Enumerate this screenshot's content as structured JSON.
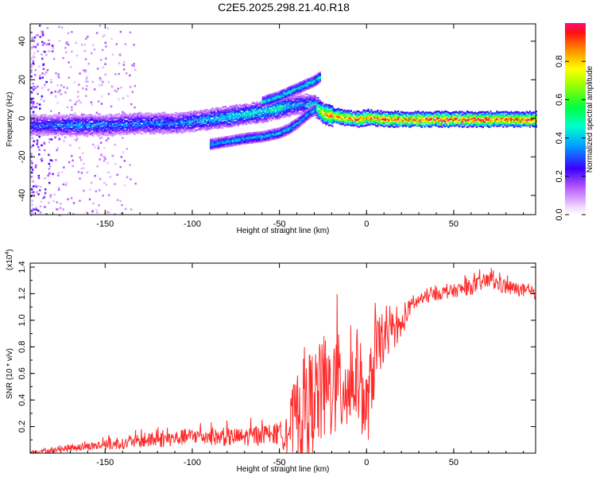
{
  "title": "C2E5.2025.298.21.40.R18",
  "chart_data": [
    {
      "type": "heatmap",
      "name": "spectrogram",
      "xlabel": "Height of straight line (km)",
      "ylabel": "Frequency (Hz)",
      "xlim": [
        -193,
        97
      ],
      "ylim": [
        -50,
        49
      ],
      "x_ticks": [
        -150,
        -100,
        -50,
        0,
        50
      ],
      "x_tick_labels": [
        "-150",
        "-100",
        "-50",
        "0",
        "50"
      ],
      "y_ticks": [
        -40,
        -20,
        0,
        20,
        40
      ],
      "y_tick_labels": [
        "-40",
        "-20",
        "0",
        "20",
        "40"
      ],
      "colorbar": {
        "label": "Normalized spectral amplitude",
        "range": [
          0,
          1
        ],
        "ticks": [
          0.0,
          0.2,
          0.4,
          0.6,
          0.8
        ],
        "tick_labels": [
          "0.0",
          "0.2",
          "0.4",
          "0.6",
          "0.8"
        ]
      },
      "main_band": {
        "x": [
          -193,
          -170,
          -150,
          -130,
          -110,
          -90,
          -75,
          -60,
          -50,
          -45,
          -38,
          -30,
          -25,
          -15,
          -5,
          0,
          10,
          30,
          60,
          97
        ],
        "freq_hz": [
          -3,
          -3,
          -3,
          -2,
          -2,
          0,
          2,
          4,
          6,
          7,
          8,
          7,
          3,
          1,
          0,
          1,
          0,
          0,
          0,
          0
        ],
        "amplitude": [
          0.3,
          0.35,
          0.35,
          0.35,
          0.35,
          0.4,
          0.45,
          0.45,
          0.5,
          0.4,
          0.35,
          0.5,
          0.8,
          0.9,
          0.9,
          0.9,
          0.95,
          0.95,
          0.95,
          0.95
        ]
      },
      "upper_branch": {
        "x": [
          -60,
          -50,
          -45,
          -40,
          -35,
          -30,
          -27
        ],
        "freq_hz": [
          9,
          12,
          14,
          16,
          18,
          20,
          22
        ]
      },
      "lower_branch": {
        "x": [
          -90,
          -70,
          -60,
          -50,
          -45,
          -40,
          -35,
          -30
        ],
        "freq_hz": [
          -13,
          -10,
          -9,
          -7,
          -5,
          -2,
          2,
          5
        ]
      }
    },
    {
      "type": "line",
      "name": "snr",
      "xlabel": "Height of straight line (km)",
      "ylabel": "SNR (10 * v/v)",
      "y_multiplier_label": "(x10",
      "y_multiplier_exponent": "4",
      "y_multiplier_close": ")",
      "xlim": [
        -193,
        97
      ],
      "ylim": [
        0,
        1.43
      ],
      "x_ticks": [
        -150,
        -100,
        -50,
        0,
        50
      ],
      "x_tick_labels": [
        "-150",
        "-100",
        "-50",
        "0",
        "50"
      ],
      "y_ticks": [
        0.2,
        0.4,
        0.6,
        0.8,
        1.0,
        1.2,
        1.4
      ],
      "y_tick_labels": [
        "0.2",
        "0.4",
        "0.6",
        "0.8",
        "1.0",
        "1.2",
        "1.4"
      ],
      "color": "#ff2a2a",
      "series": [
        {
          "name": "SNR",
          "x": [
            -193,
            -180,
            -170,
            -160,
            -150,
            -140,
            -130,
            -120,
            -110,
            -100,
            -90,
            -80,
            -70,
            -60,
            -50,
            -45,
            -40,
            -35,
            -30,
            -25,
            -20,
            -15,
            -10,
            -5,
            0,
            5,
            10,
            15,
            20,
            25,
            30,
            40,
            50,
            60,
            70,
            80,
            90,
            97
          ],
          "values": [
            0.01,
            0.02,
            0.04,
            0.05,
            0.06,
            0.07,
            0.09,
            0.1,
            0.11,
            0.13,
            0.12,
            0.12,
            0.12,
            0.14,
            0.14,
            0.18,
            0.25,
            0.35,
            0.4,
            0.45,
            0.5,
            0.5,
            0.5,
            0.6,
            0.3,
            0.75,
            0.85,
            0.9,
            0.95,
            1.1,
            1.15,
            1.2,
            1.22,
            1.25,
            1.3,
            1.25,
            1.22,
            1.18
          ],
          "noise_amplitude": [
            0.01,
            0.02,
            0.03,
            0.03,
            0.04,
            0.04,
            0.05,
            0.06,
            0.06,
            0.06,
            0.06,
            0.07,
            0.07,
            0.08,
            0.08,
            0.2,
            0.35,
            0.4,
            0.4,
            0.4,
            0.4,
            0.4,
            0.35,
            0.35,
            0.3,
            0.3,
            0.15,
            0.12,
            0.1,
            0.06,
            0.05,
            0.05,
            0.05,
            0.06,
            0.06,
            0.06,
            0.05,
            0.05
          ]
        }
      ]
    }
  ]
}
